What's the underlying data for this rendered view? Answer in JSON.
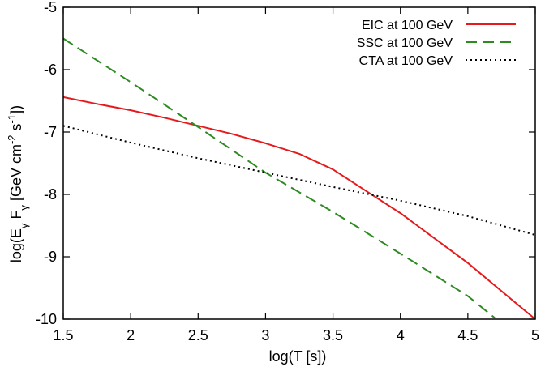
{
  "chart_data": {
    "type": "line",
    "title": "",
    "xlabel": "log(T [s])",
    "ylabel": {
      "parts": [
        "log(E",
        "γ",
        " F",
        "γ",
        " [GeV cm",
        "-2",
        " s",
        "-1",
        "])"
      ]
    },
    "xlim": [
      1.5,
      5
    ],
    "ylim": [
      -10,
      -5
    ],
    "x_ticks": [
      1.5,
      2,
      2.5,
      3,
      3.5,
      4,
      4.5,
      5
    ],
    "x_tick_labels": [
      "1.5",
      "2",
      "2.5",
      "3",
      "3.5",
      "4",
      "4.5",
      "5"
    ],
    "y_ticks": [
      -10,
      -9,
      -8,
      -7,
      -6,
      -5
    ],
    "y_tick_labels": [
      "-10",
      "-9",
      "-8",
      "-7",
      "-6",
      "-5"
    ],
    "legend_position": "top-right",
    "series": [
      {
        "name": "EIC at 100 GeV",
        "color": "#e41a1c",
        "style": "solid",
        "x": [
          1.5,
          1.75,
          2.0,
          2.25,
          2.5,
          2.75,
          3.0,
          3.25,
          3.5,
          3.75,
          4.0,
          4.25,
          4.5,
          4.75,
          5.0
        ],
        "y": [
          -6.44,
          -6.55,
          -6.65,
          -6.77,
          -6.9,
          -7.03,
          -7.18,
          -7.35,
          -7.6,
          -7.95,
          -8.3,
          -8.7,
          -9.1,
          -9.55,
          -10.0
        ]
      },
      {
        "name": "SSC at 100 GeV",
        "color": "#2e8b22",
        "style": "dashed",
        "x": [
          1.5,
          2.0,
          2.5,
          3.0,
          3.5,
          4.0,
          4.5,
          4.7
        ],
        "y": [
          -5.5,
          -6.2,
          -6.92,
          -7.65,
          -8.28,
          -8.95,
          -9.63,
          -9.98
        ]
      },
      {
        "name": "CTA at 100 GeV",
        "color": "#000000",
        "style": "dotted",
        "x": [
          1.5,
          2.0,
          2.5,
          3.0,
          3.5,
          4.0,
          4.5,
          5.0
        ],
        "y": [
          -6.9,
          -7.17,
          -7.42,
          -7.65,
          -7.88,
          -8.1,
          -8.35,
          -8.65
        ]
      }
    ]
  }
}
